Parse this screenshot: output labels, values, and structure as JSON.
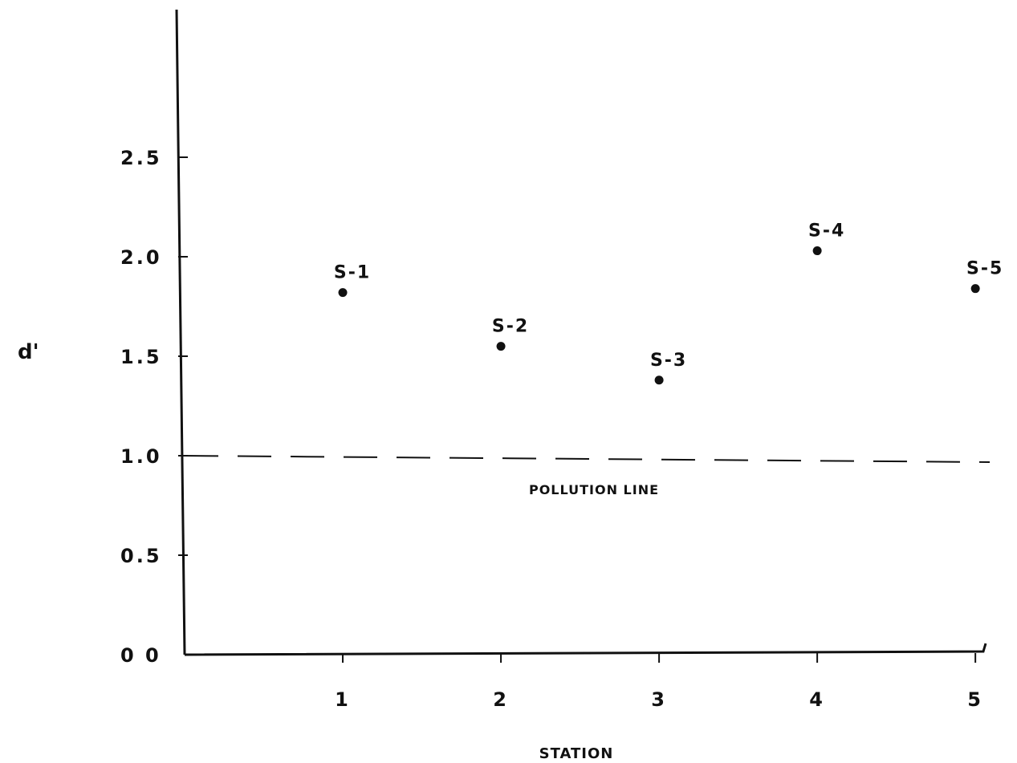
{
  "chart_data": {
    "type": "scatter",
    "title": "",
    "xlabel": "STATION",
    "ylabel": "d'",
    "xlim": [
      0,
      5.05
    ],
    "ylim": [
      0,
      2.5
    ],
    "x_ticks": [
      1,
      2,
      3,
      4,
      5
    ],
    "x_tick_labels": [
      "1",
      "2",
      "3",
      "4",
      "5"
    ],
    "y_ticks": [
      0,
      0.5,
      1.0,
      1.5,
      2.0,
      2.5
    ],
    "y_tick_labels": [
      "0 0",
      "0.5",
      "1.0",
      "1.5",
      "2.0",
      "2.5"
    ],
    "grid": false,
    "points": [
      {
        "x": 1,
        "y": 1.82,
        "label": "S-1"
      },
      {
        "x": 2,
        "y": 1.55,
        "label": "S-2"
      },
      {
        "x": 3,
        "y": 1.38,
        "label": "S-3"
      },
      {
        "x": 4,
        "y": 2.03,
        "label": "S-4"
      },
      {
        "x": 5,
        "y": 1.84,
        "label": "S-5"
      }
    ],
    "reference_line": {
      "y": 1.0,
      "style": "dashed",
      "label": "POLLUTION LINE"
    }
  }
}
